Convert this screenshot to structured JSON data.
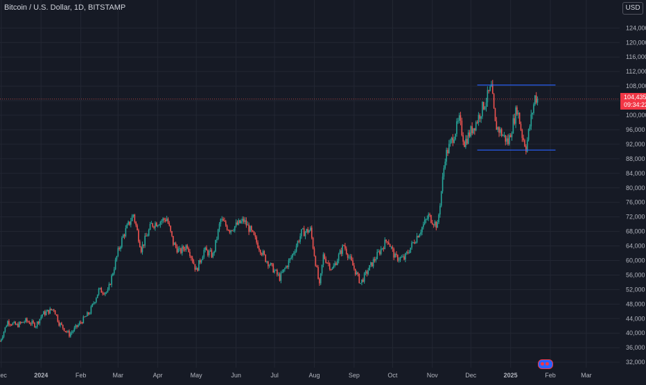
{
  "header": {
    "symbol_title": "Bitcoin / U.S. Dollar, 1D, BITSTAMP",
    "currency": "USD"
  },
  "price_label": {
    "price": "104,435",
    "countdown": "09:34:22"
  },
  "colors": {
    "background": "#161a25",
    "grid": "#232733",
    "up": "#26a69a",
    "down": "#ef5350",
    "channel": "#2962ff",
    "price_tag": "#f23645",
    "axis_text": "#b2b5be"
  },
  "chart_data": {
    "type": "candlestick",
    "title": "Bitcoin / U.S. Dollar, 1D, BITSTAMP",
    "y_axis_unit": "USD",
    "y_ticks": [
      124000,
      120000,
      116000,
      112000,
      108000,
      104000,
      100000,
      96000,
      92000,
      88000,
      84000,
      80000,
      76000,
      72000,
      68000,
      64000,
      60000,
      56000,
      52000,
      48000,
      44000,
      40000,
      36000,
      32000
    ],
    "ylim": [
      30500,
      127500
    ],
    "x_ticks": [
      {
        "label": "Dec",
        "date": "2023-12-01"
      },
      {
        "label": "2024",
        "date": "2024-01-01"
      },
      {
        "label": "Feb",
        "date": "2024-02-01"
      },
      {
        "label": "Mar",
        "date": "2024-03-01"
      },
      {
        "label": "Apr",
        "date": "2024-04-01"
      },
      {
        "label": "May",
        "date": "2024-05-01"
      },
      {
        "label": "Jun",
        "date": "2024-06-01"
      },
      {
        "label": "Jul",
        "date": "2024-07-01"
      },
      {
        "label": "Aug",
        "date": "2024-08-01"
      },
      {
        "label": "Sep",
        "date": "2024-09-01"
      },
      {
        "label": "Oct",
        "date": "2024-10-01"
      },
      {
        "label": "Nov",
        "date": "2024-11-01"
      },
      {
        "label": "Dec",
        "date": "2024-12-01"
      },
      {
        "label": "2025",
        "date": "2025-01-01"
      },
      {
        "label": "Feb",
        "date": "2025-02-01"
      },
      {
        "label": "Mar",
        "date": "2025-03-01"
      }
    ],
    "xlim": [
      "2023-11-30",
      "2025-03-27"
    ],
    "grid": true,
    "last_price": 104435,
    "series": [
      {
        "close_path": [
          [
            "2023-11-30",
            37800
          ],
          [
            "2023-12-06",
            43200
          ],
          [
            "2023-12-13",
            42100
          ],
          [
            "2023-12-20",
            43400
          ],
          [
            "2023-12-28",
            42200
          ],
          [
            "2024-01-02",
            45200
          ],
          [
            "2024-01-11",
            46700
          ],
          [
            "2024-01-15",
            42800
          ],
          [
            "2024-01-23",
            39600
          ],
          [
            "2024-02-01",
            43000
          ],
          [
            "2024-02-08",
            45800
          ],
          [
            "2024-02-15",
            51800
          ],
          [
            "2024-02-22",
            51300
          ],
          [
            "2024-03-01",
            62400
          ],
          [
            "2024-03-05",
            66800
          ],
          [
            "2024-03-13",
            72700
          ],
          [
            "2024-03-19",
            63200
          ],
          [
            "2024-03-27",
            69800
          ],
          [
            "2024-04-08",
            71600
          ],
          [
            "2024-04-13",
            64800
          ],
          [
            "2024-04-18",
            62300
          ],
          [
            "2024-04-24",
            64300
          ],
          [
            "2024-05-01",
            57200
          ],
          [
            "2024-05-07",
            62800
          ],
          [
            "2024-05-14",
            61400
          ],
          [
            "2024-05-20",
            71200
          ],
          [
            "2024-05-27",
            68500
          ],
          [
            "2024-06-07",
            71000
          ],
          [
            "2024-06-12",
            68300
          ],
          [
            "2024-06-24",
            60400
          ],
          [
            "2024-07-05",
            55200
          ],
          [
            "2024-07-14",
            60800
          ],
          [
            "2024-07-22",
            67600
          ],
          [
            "2024-07-29",
            68400
          ],
          [
            "2024-08-05",
            52800
          ],
          [
            "2024-08-08",
            61300
          ],
          [
            "2024-08-15",
            57500
          ],
          [
            "2024-08-24",
            64200
          ],
          [
            "2024-09-06",
            53800
          ],
          [
            "2024-09-15",
            59200
          ],
          [
            "2024-09-27",
            65900
          ],
          [
            "2024-10-03",
            60800
          ],
          [
            "2024-10-10",
            60500
          ],
          [
            "2024-10-21",
            67300
          ],
          [
            "2024-10-29",
            72200
          ],
          [
            "2024-11-05",
            69500
          ],
          [
            "2024-11-11",
            88700
          ],
          [
            "2024-11-13",
            90300
          ],
          [
            "2024-11-22",
            98500
          ],
          [
            "2024-11-26",
            92500
          ],
          [
            "2024-12-05",
            98000
          ],
          [
            "2024-12-17",
            107500
          ],
          [
            "2024-12-20",
            97400
          ],
          [
            "2024-12-30",
            92500
          ],
          [
            "2025-01-06",
            102000
          ],
          [
            "2025-01-10",
            94500
          ],
          [
            "2025-01-13",
            91200
          ],
          [
            "2025-01-20",
            105000
          ],
          [
            "2025-01-22",
            104435
          ]
        ]
      }
    ],
    "trendlines": [
      {
        "from": {
          "date": "2024-12-06",
          "price": 108300
        },
        "to": {
          "date": "2025-02-05",
          "price": 108300
        }
      },
      {
        "from": {
          "date": "2024-12-06",
          "price": 90400
        },
        "to": {
          "date": "2025-02-05",
          "price": 90400
        }
      }
    ]
  }
}
